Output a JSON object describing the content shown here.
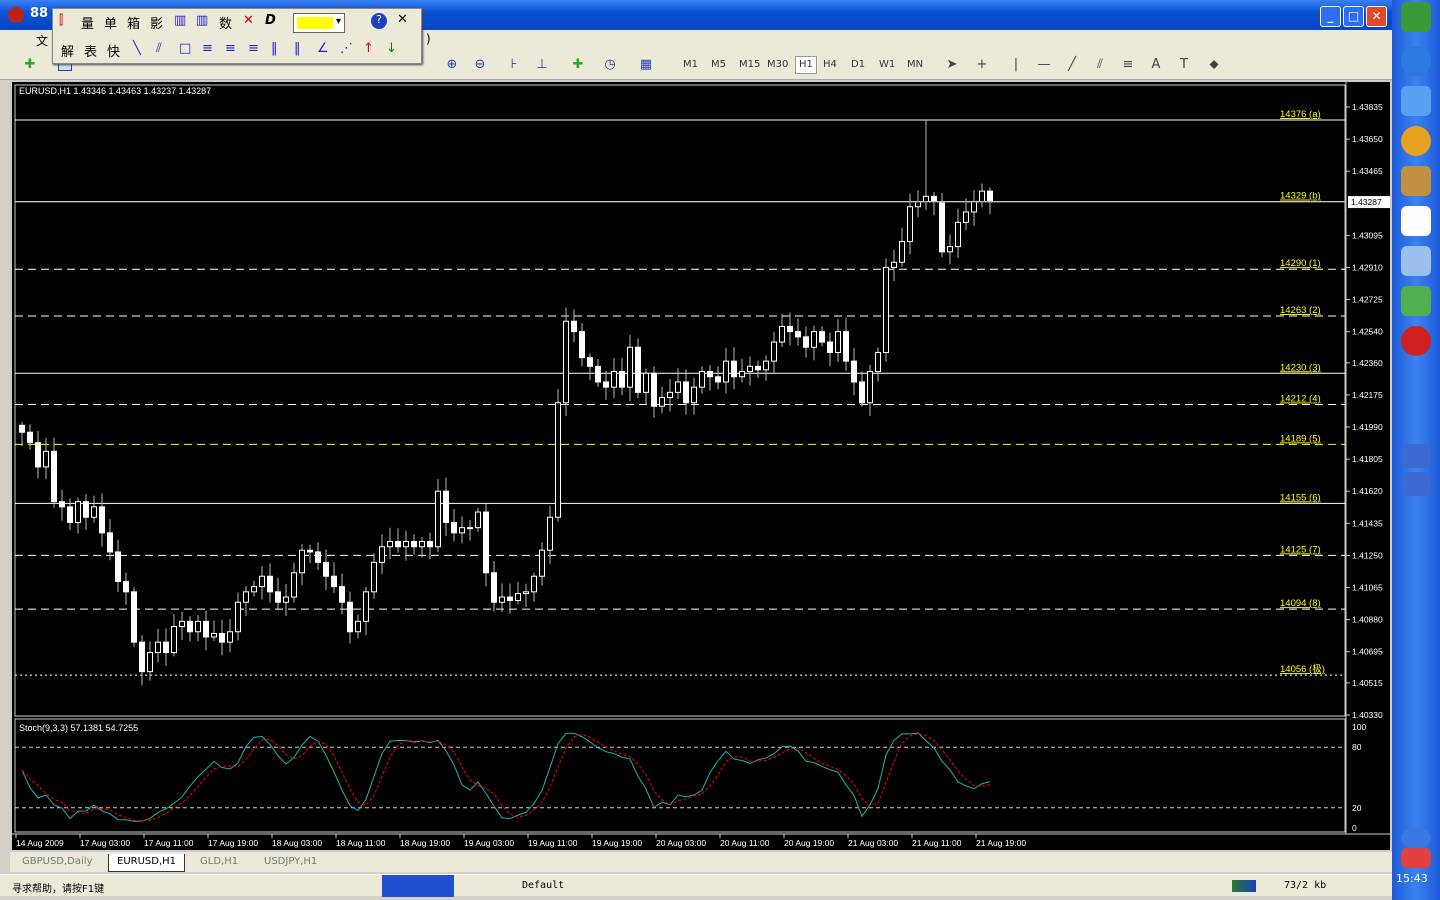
{
  "window": {
    "title": "88",
    "minimize": "_",
    "maximize": "□",
    "close": "✕"
  },
  "menubar": {
    "first_item": "文",
    "last_fragment": ")"
  },
  "floating_toolbar": {
    "row1": [
      "量",
      "单",
      "箱",
      "影",
      "数"
    ],
    "row2": [
      "解",
      "表",
      "快"
    ],
    "color": "#ffff00",
    "help": "?",
    "close": "✕"
  },
  "toolbar": {
    "timeframes": [
      "M1",
      "M5",
      "M15",
      "M30",
      "H1",
      "H4",
      "D1",
      "W1",
      "MN"
    ],
    "selected_timeframe": "H1",
    "icons": [
      "new-chart-icon",
      "zoom-in-icon",
      "zoom-out-icon",
      "cursor-icon",
      "crosshair-icon",
      "vertical-line-icon",
      "horizontal-line-icon",
      "trendline-icon",
      "fibonacci-icon",
      "text-icon",
      "label-icon"
    ]
  },
  "chart": {
    "header": "EURUSD,H1  1.43346 1.43463 1.43237 1.43287",
    "current_price": "1.43287",
    "price_ticks": [
      "1.43835",
      "1.43650",
      "1.43465",
      "1.43095",
      "1.42910",
      "1.42725",
      "1.42540",
      "1.42360",
      "1.42175",
      "1.41990",
      "1.41805",
      "1.41620",
      "1.41435",
      "1.41250",
      "1.41065",
      "1.40880",
      "1.40695",
      "1.40515",
      "1.40330"
    ],
    "levels": [
      {
        "label": "14376 (a)",
        "price": 1.4376,
        "style": "solid",
        "color": "#ffffff"
      },
      {
        "label": "14329 (b)",
        "price": 1.4329,
        "style": "solid",
        "color": "#ffffff"
      },
      {
        "label": "14290 (1)",
        "price": 1.429,
        "style": "dashed",
        "color": "#ffffff"
      },
      {
        "label": "14263 (2)",
        "price": 1.4263,
        "style": "dashed",
        "color": "#ffffff"
      },
      {
        "label": "14230 (3)",
        "price": 1.423,
        "style": "solid",
        "color": "#ffffff"
      },
      {
        "label": "14212 (4)",
        "price": 1.4212,
        "style": "dashed",
        "color": "#ffffff"
      },
      {
        "label": "14189 (5)",
        "price": 1.4189,
        "style": "dashed",
        "color": "#ffff00"
      },
      {
        "label": "14155 (6)",
        "price": 1.4155,
        "style": "solid",
        "color": "#ffffff"
      },
      {
        "label": "14125 (7)",
        "price": 1.4125,
        "style": "dashed",
        "color": "#ffffff"
      },
      {
        "label": "14094 (8)",
        "price": 1.4094,
        "style": "dashed",
        "color": "#ffffff"
      },
      {
        "label": "14056 (极)",
        "price": 1.4056,
        "style": "dotted",
        "color": "#ffffff"
      }
    ],
    "time_labels": [
      "14 Aug 2009",
      "17 Aug 03:00",
      "17 Aug 11:00",
      "17 Aug 19:00",
      "18 Aug 03:00",
      "18 Aug 11:00",
      "18 Aug 19:00",
      "19 Aug 03:00",
      "19 Aug 11:00",
      "19 Aug 19:00",
      "20 Aug 03:00",
      "20 Aug 11:00",
      "20 Aug 19:00",
      "21 Aug 03:00",
      "21 Aug 11:00",
      "21 Aug 19:00"
    ],
    "stoch": {
      "header": "Stoch(9,3,3) 57.1381 54.7255",
      "ticks": [
        "100",
        "80",
        "20",
        "0"
      ],
      "main_color": "#20b2aa",
      "signal_color": "#ff0000"
    }
  },
  "chart_data": {
    "type": "candlestick",
    "symbol": "EURUSD",
    "timeframe": "H1",
    "ylim": [
      1.4033,
      1.43835
    ],
    "spike_high": 1.4376,
    "closes": [
      1.4196,
      1.419,
      1.4176,
      1.4185,
      1.4156,
      1.4153,
      1.4144,
      1.4156,
      1.4147,
      1.4153,
      1.4138,
      1.4127,
      1.411,
      1.4104,
      1.4075,
      1.4058,
      1.4069,
      1.4075,
      1.4069,
      1.4084,
      1.4087,
      1.4081,
      1.4087,
      1.4078,
      1.408,
      1.4075,
      1.4081,
      1.4098,
      1.4104,
      1.4107,
      1.4113,
      1.4104,
      1.4098,
      1.4101,
      1.4115,
      1.4128,
      1.4127,
      1.4121,
      1.4113,
      1.4107,
      1.4098,
      1.4081,
      1.4087,
      1.4104,
      1.4121,
      1.413,
      1.4133,
      1.413,
      1.4133,
      1.413,
      1.4133,
      1.413,
      1.4162,
      1.4144,
      1.4138,
      1.4141,
      1.4141,
      1.415,
      1.4115,
      1.4098,
      1.4101,
      1.4099,
      1.4103,
      1.4104,
      1.4113,
      1.4128,
      1.4147,
      1.4213,
      1.426,
      1.4254,
      1.4239,
      1.4234,
      1.4225,
      1.4222,
      1.4231,
      1.4222,
      1.4245,
      1.4219,
      1.423,
      1.4211,
      1.4216,
      1.4219,
      1.4225,
      1.4213,
      1.4222,
      1.4231,
      1.4228,
      1.4225,
      1.4237,
      1.4228,
      1.4231,
      1.4234,
      1.4232,
      1.4237,
      1.4248,
      1.4257,
      1.4254,
      1.4251,
      1.4245,
      1.4254,
      1.4248,
      1.4242,
      1.4254,
      1.4237,
      1.4225,
      1.4213,
      1.4231,
      1.4242,
      1.4291,
      1.4294,
      1.4306,
      1.4326,
      1.4329,
      1.4332,
      1.4329,
      1.43,
      1.4303,
      1.4317,
      1.4323,
      1.4329,
      1.4335,
      1.43287
    ]
  },
  "tabs": [
    {
      "label": "GBPUSD,Daily",
      "active": false
    },
    {
      "label": "EURUSD,H1",
      "active": true
    },
    {
      "label": "GLD,H1",
      "active": false
    },
    {
      "label": "USDJPY,H1",
      "active": false
    }
  ],
  "status": {
    "help": "寻求帮助，请按F1键",
    "profile": "Default",
    "traffic": "73/2 kb"
  },
  "taskbar": {
    "clock": "15:43"
  }
}
